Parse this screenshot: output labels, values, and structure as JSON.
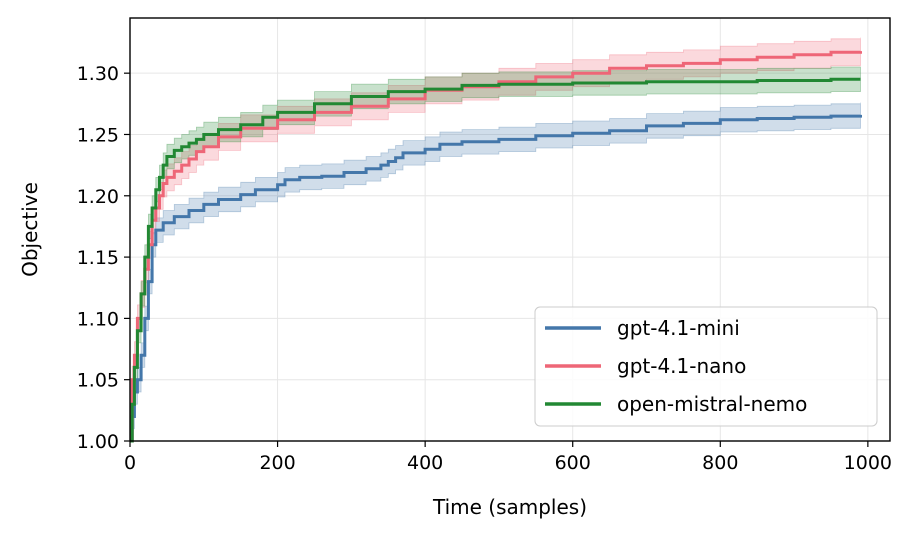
{
  "chart_data": {
    "type": "line",
    "title": "",
    "xlabel": "Time (samples)",
    "ylabel": "Objective",
    "xlim": [
      0,
      1030
    ],
    "ylim": [
      1.0,
      1.345
    ],
    "xticks": [
      0,
      200,
      400,
      600,
      800,
      1000
    ],
    "xtick_labels": [
      "0",
      "200",
      "400",
      "600",
      "800",
      "1000"
    ],
    "yticks": [
      1.0,
      1.05,
      1.1,
      1.15,
      1.2,
      1.25,
      1.3
    ],
    "ytick_labels": [
      "1.00",
      "1.05",
      "1.10",
      "1.15",
      "1.20",
      "1.25",
      "1.30"
    ],
    "grid": true,
    "legend_position": "lower-right",
    "series": [
      {
        "name": "gpt-4.1-mini",
        "color": "#4477aa",
        "band_halfwidth": 0.01,
        "points": [
          [
            0,
            1.0
          ],
          [
            3,
            1.02
          ],
          [
            6,
            1.04
          ],
          [
            10,
            1.05
          ],
          [
            15,
            1.07
          ],
          [
            20,
            1.1
          ],
          [
            25,
            1.13
          ],
          [
            30,
            1.16
          ],
          [
            35,
            1.172
          ],
          [
            45,
            1.178
          ],
          [
            60,
            1.183
          ],
          [
            80,
            1.188
          ],
          [
            100,
            1.193
          ],
          [
            120,
            1.197
          ],
          [
            150,
            1.201
          ],
          [
            170,
            1.205
          ],
          [
            200,
            1.209
          ],
          [
            210,
            1.213
          ],
          [
            230,
            1.215
          ],
          [
            260,
            1.216
          ],
          [
            290,
            1.219
          ],
          [
            320,
            1.222
          ],
          [
            340,
            1.225
          ],
          [
            350,
            1.228
          ],
          [
            360,
            1.231
          ],
          [
            370,
            1.235
          ],
          [
            400,
            1.238
          ],
          [
            420,
            1.242
          ],
          [
            450,
            1.244
          ],
          [
            500,
            1.246
          ],
          [
            550,
            1.249
          ],
          [
            600,
            1.251
          ],
          [
            650,
            1.253
          ],
          [
            700,
            1.257
          ],
          [
            750,
            1.259
          ],
          [
            800,
            1.262
          ],
          [
            850,
            1.263
          ],
          [
            900,
            1.264
          ],
          [
            950,
            1.265
          ],
          [
            990,
            1.266
          ]
        ]
      },
      {
        "name": "gpt-4.1-nano",
        "color": "#ee6677",
        "band_halfwidth": 0.011,
        "points": [
          [
            0,
            1.0
          ],
          [
            3,
            1.05
          ],
          [
            6,
            1.07
          ],
          [
            10,
            1.1
          ],
          [
            15,
            1.12
          ],
          [
            20,
            1.14
          ],
          [
            25,
            1.16
          ],
          [
            30,
            1.18
          ],
          [
            35,
            1.19
          ],
          [
            40,
            1.2
          ],
          [
            45,
            1.21
          ],
          [
            50,
            1.215
          ],
          [
            60,
            1.22
          ],
          [
            70,
            1.225
          ],
          [
            80,
            1.23
          ],
          [
            90,
            1.236
          ],
          [
            100,
            1.24
          ],
          [
            120,
            1.248
          ],
          [
            150,
            1.255
          ],
          [
            200,
            1.262
          ],
          [
            250,
            1.268
          ],
          [
            300,
            1.273
          ],
          [
            350,
            1.279
          ],
          [
            400,
            1.286
          ],
          [
            450,
            1.289
          ],
          [
            500,
            1.293
          ],
          [
            550,
            1.297
          ],
          [
            600,
            1.3
          ],
          [
            650,
            1.304
          ],
          [
            700,
            1.306
          ],
          [
            750,
            1.308
          ],
          [
            800,
            1.311
          ],
          [
            850,
            1.313
          ],
          [
            900,
            1.315
          ],
          [
            950,
            1.317
          ],
          [
            990,
            1.318
          ]
        ]
      },
      {
        "name": "open-mistral-nemo",
        "color": "#228833",
        "band_halfwidth": 0.01,
        "points": [
          [
            0,
            1.0
          ],
          [
            3,
            1.03
          ],
          [
            6,
            1.06
          ],
          [
            10,
            1.09
          ],
          [
            15,
            1.12
          ],
          [
            20,
            1.15
          ],
          [
            25,
            1.175
          ],
          [
            30,
            1.19
          ],
          [
            35,
            1.205
          ],
          [
            40,
            1.215
          ],
          [
            45,
            1.225
          ],
          [
            50,
            1.232
          ],
          [
            60,
            1.237
          ],
          [
            70,
            1.24
          ],
          [
            80,
            1.243
          ],
          [
            90,
            1.246
          ],
          [
            100,
            1.25
          ],
          [
            120,
            1.254
          ],
          [
            150,
            1.258
          ],
          [
            180,
            1.264
          ],
          [
            200,
            1.268
          ],
          [
            250,
            1.275
          ],
          [
            300,
            1.281
          ],
          [
            350,
            1.285
          ],
          [
            400,
            1.287
          ],
          [
            450,
            1.29
          ],
          [
            500,
            1.291
          ],
          [
            550,
            1.291
          ],
          [
            600,
            1.292
          ],
          [
            650,
            1.292
          ],
          [
            700,
            1.293
          ],
          [
            750,
            1.293
          ],
          [
            800,
            1.293
          ],
          [
            850,
            1.294
          ],
          [
            900,
            1.294
          ],
          [
            950,
            1.295
          ],
          [
            990,
            1.295
          ]
        ]
      }
    ]
  }
}
